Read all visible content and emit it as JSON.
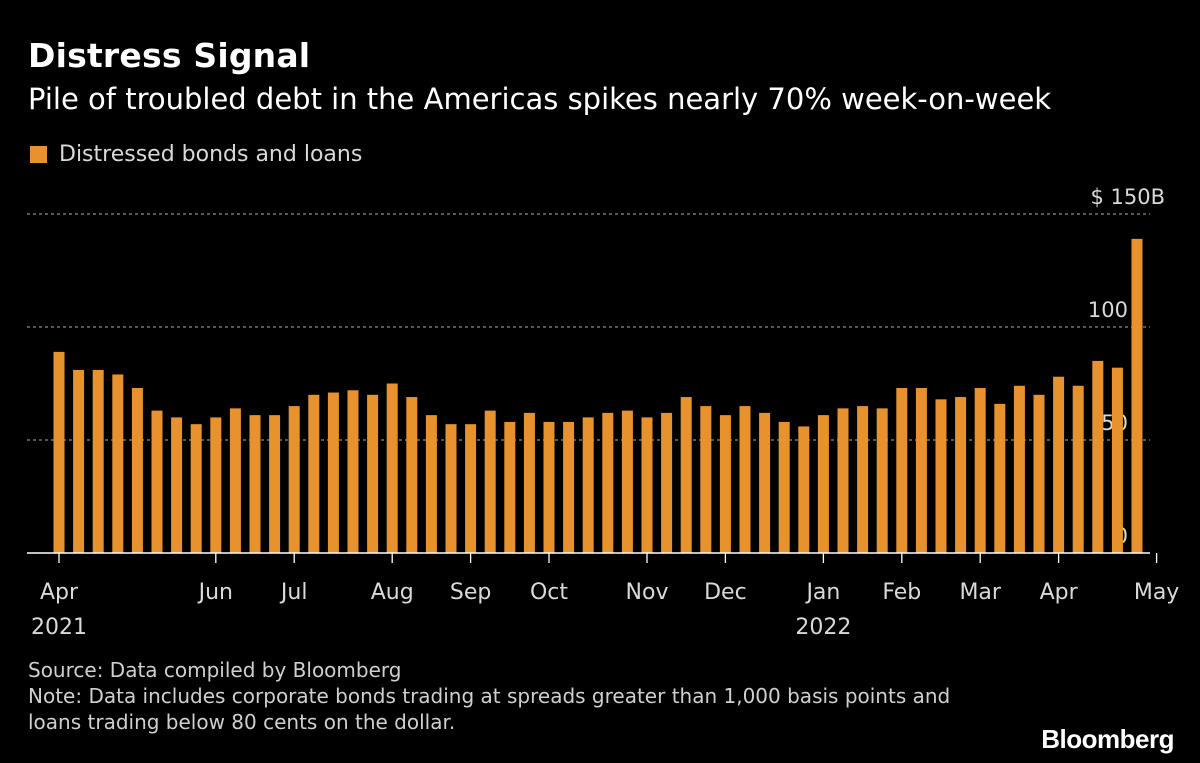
{
  "header": {
    "title": "Distress Signal",
    "subtitle": "Pile of troubled debt in the Americas spikes nearly 70% week-on-week"
  },
  "footer": {
    "source": "Source: Data compiled by Bloomberg",
    "note": "Note: Data includes corporate bonds trading at spreads greater than 1,000 basis points and loans trading below 80 cents on the dollar.",
    "brand": "Bloomberg"
  },
  "colors": {
    "bar": "#e8922e",
    "background": "#000000",
    "grid": "#8a8a8a"
  },
  "chart_data": {
    "type": "bar",
    "title": "Distress Signal",
    "subtitle": "Pile of troubled debt in the Americas spikes nearly 70% week-on-week",
    "legend": [
      {
        "name": "Distressed bonds and loans",
        "color": "#e8922e"
      }
    ],
    "legend_position": "top-left",
    "ylim": [
      0,
      150
    ],
    "yticks": [
      {
        "value": 0,
        "label": "0"
      },
      {
        "value": 50,
        "label": "50"
      },
      {
        "value": 100,
        "label": "100"
      },
      {
        "value": 150,
        "label": "$ 150B"
      }
    ],
    "y_axis_side": "right",
    "grid": true,
    "xticks": [
      {
        "bar_index": 0,
        "label": "Apr",
        "sublabel": "2021"
      },
      {
        "bar_index": 8,
        "label": "Jun"
      },
      {
        "bar_index": 12,
        "label": "Jul"
      },
      {
        "bar_index": 17,
        "label": "Aug"
      },
      {
        "bar_index": 21,
        "label": "Sep"
      },
      {
        "bar_index": 25,
        "label": "Oct"
      },
      {
        "bar_index": 30,
        "label": "Nov"
      },
      {
        "bar_index": 34,
        "label": "Dec"
      },
      {
        "bar_index": 39,
        "label": "Jan",
        "sublabel": "2022"
      },
      {
        "bar_index": 43,
        "label": "Feb"
      },
      {
        "bar_index": 47,
        "label": "Mar"
      },
      {
        "bar_index": 51,
        "label": "Apr"
      },
      {
        "bar_index": 56,
        "label": "May"
      }
    ],
    "series": [
      {
        "name": "Distressed bonds and loans",
        "values": [
          89,
          81,
          81,
          79,
          73,
          63,
          60,
          57,
          60,
          64,
          61,
          61,
          65,
          70,
          71,
          72,
          70,
          75,
          69,
          61,
          57,
          57,
          63,
          58,
          62,
          58,
          58,
          60,
          62,
          63,
          60,
          62,
          69,
          65,
          61,
          65,
          62,
          58,
          56,
          61,
          64,
          65,
          64,
          73,
          73,
          68,
          69,
          73,
          66,
          74,
          70,
          78,
          74,
          85,
          82,
          139
        ]
      }
    ]
  }
}
